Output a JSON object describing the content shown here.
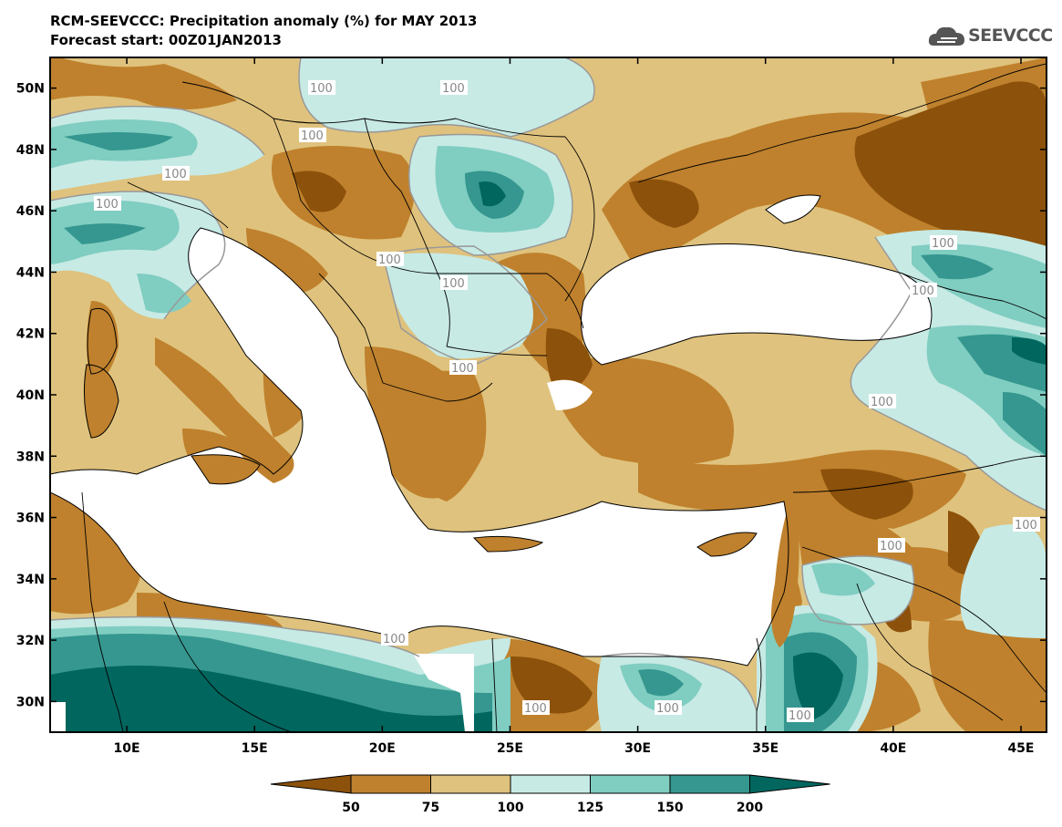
{
  "header": {
    "title": "RCM-SEEVCCC: Precipitation anomaly (%) for MAY 2013",
    "subtitle": "Forecast start: 00Z01JAN2013",
    "logo_text": "SEEVCCC"
  },
  "map": {
    "lon_range": [
      7,
      46
    ],
    "lat_range": [
      29,
      51
    ],
    "lat_ticks": [
      "50N",
      "48N",
      "46N",
      "44N",
      "42N",
      "40N",
      "38N",
      "36N",
      "34N",
      "32N",
      "30N"
    ],
    "lon_ticks": [
      "10E",
      "15E",
      "20E",
      "25E",
      "30E",
      "35E",
      "40E",
      "45E"
    ],
    "contour_label": "100"
  },
  "legend": {
    "labels": [
      "50",
      "75",
      "100",
      "125",
      "150",
      "200"
    ],
    "colors": [
      "#8c510a",
      "#bf812d",
      "#dfc27d",
      "#c7eae5",
      "#80cdc1",
      "#35978f",
      "#01665e"
    ]
  },
  "palette": {
    "sea": "#ffffff",
    "border": "#000000",
    "contour": "#999999"
  }
}
